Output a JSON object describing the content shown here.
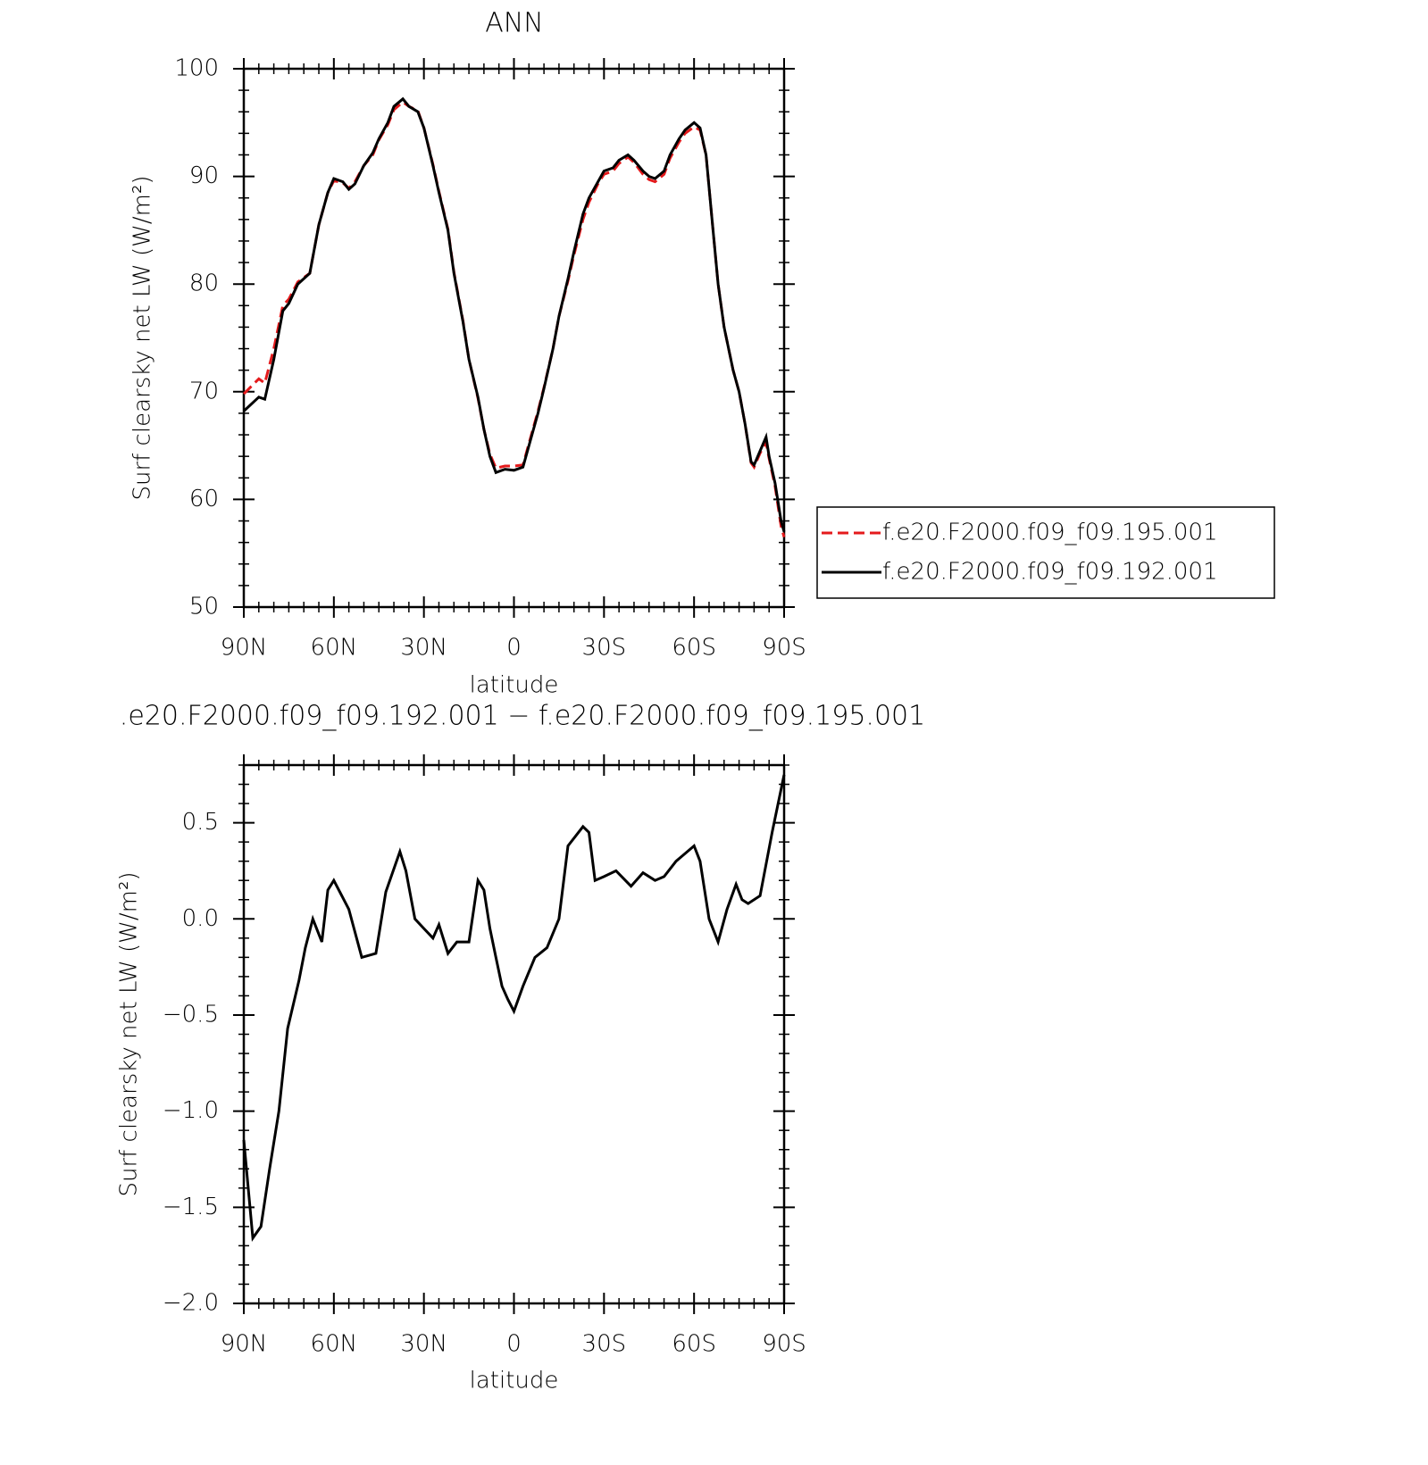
{
  "chart_data": [
    {
      "type": "line",
      "title": "ANN",
      "xlabel": "latitude",
      "ylabel": "Surf clearsky net LW (W/m²)",
      "xlim": [
        90,
        -90
      ],
      "xticks": [
        {
          "value": 90,
          "label": "90N"
        },
        {
          "value": 60,
          "label": "60N"
        },
        {
          "value": 30,
          "label": "30N"
        },
        0,
        {
          "value": -30,
          "label": "30S"
        },
        {
          "value": -60,
          "label": "60S"
        },
        {
          "value": -90,
          "label": "90S"
        }
      ],
      "ylim": [
        50,
        100
      ],
      "yticks": [
        50,
        60,
        70,
        80,
        90,
        100
      ],
      "legend": "right",
      "x": [
        90,
        85,
        83,
        80,
        77,
        75,
        72,
        68,
        65,
        62,
        60,
        57,
        55,
        53,
        50,
        47,
        45,
        42,
        40,
        37,
        35,
        32,
        30,
        27,
        25,
        22,
        20,
        17,
        15,
        12,
        10,
        8,
        6,
        3,
        0,
        -3,
        -5,
        -8,
        -10,
        -13,
        -15,
        -18,
        -20,
        -23,
        -25,
        -28,
        -30,
        -33,
        -35,
        -38,
        -40,
        -43,
        -45,
        -47,
        -50,
        -52,
        -55,
        -57,
        -60,
        -62,
        -64,
        -66,
        -68,
        -70,
        -73,
        -75,
        -77,
        -79,
        -80,
        -82,
        -84,
        -85,
        -87,
        -89,
        -90
      ],
      "series": [
        {
          "name": "f.e20.F2000.f09_f09.195.001",
          "color": "#e41a1c",
          "linestyle": "dashed",
          "values": [
            69.8,
            71.2,
            70.8,
            74,
            78,
            78.6,
            80.2,
            81,
            85.5,
            88.5,
            89.6,
            89.4,
            88.9,
            89.5,
            91,
            92,
            93.4,
            94.8,
            96.2,
            96.9,
            96.5,
            96.1,
            94.5,
            91.1,
            88.6,
            85.1,
            81.1,
            76.6,
            73,
            69.4,
            66.5,
            64.2,
            62.9,
            63.1,
            63.1,
            63.2,
            65.2,
            68.2,
            70.4,
            74,
            77,
            80.3,
            82.7,
            86,
            87.6,
            89.3,
            90.2,
            90.5,
            91.2,
            91.8,
            91.3,
            90.2,
            89.7,
            89.5,
            90.2,
            91.7,
            93.2,
            94,
            94.6,
            94.3,
            92,
            86,
            80,
            76,
            72,
            70,
            67,
            63.4,
            63,
            64.3,
            65.3,
            63.8,
            61.2,
            57.5,
            56.5
          ]
        },
        {
          "name": "f.e20.F2000.f09_f09.192.001",
          "color": "#000000",
          "linestyle": "solid",
          "values": [
            68.2,
            69.5,
            69.3,
            73,
            77.5,
            78.2,
            80,
            81,
            85.5,
            88.5,
            89.8,
            89.5,
            88.8,
            89.3,
            91,
            92.2,
            93.5,
            95,
            96.5,
            97.2,
            96.5,
            96,
            94.5,
            91,
            88.5,
            85,
            81,
            76.5,
            73,
            69.5,
            66.5,
            64,
            62.5,
            62.8,
            62.7,
            63,
            65,
            68,
            70.3,
            74,
            77,
            80.5,
            83,
            86.5,
            88,
            89.5,
            90.5,
            90.8,
            91.5,
            92,
            91.5,
            90.5,
            90,
            89.8,
            90.5,
            92,
            93.5,
            94.3,
            95,
            94.5,
            92,
            86,
            80,
            76,
            72,
            70,
            67,
            63.5,
            63.2,
            64.5,
            65.8,
            64,
            61.5,
            58,
            57
          ]
        }
      ]
    },
    {
      "type": "line",
      "title": ".e20.F2000.f09_f09.192.001 − f.e20.F2000.f09_f09.195.001",
      "xlabel": "latitude",
      "ylabel": "Surf clearsky net LW (W/m²)",
      "xlim": [
        90,
        -90
      ],
      "xticks": [
        {
          "value": 90,
          "label": "90N"
        },
        {
          "value": 60,
          "label": "60N"
        },
        {
          "value": 30,
          "label": "30N"
        },
        0,
        {
          "value": -30,
          "label": "30S"
        },
        {
          "value": -60,
          "label": "60S"
        },
        {
          "value": -90,
          "label": "90S"
        }
      ],
      "ylim": [
        -2,
        0.8
      ],
      "yticks": [
        {
          "value": -2,
          "label": "−2.0"
        },
        {
          "value": -1.5,
          "label": "−1.5"
        },
        {
          "value": -1,
          "label": "−1.0"
        },
        {
          "value": -0.5,
          "label": "−0.5"
        },
        {
          "value": 0,
          "label": "0.0"
        },
        0.5
      ],
      "x": [
        90,
        87,
        84.3,
        81.4,
        78.3,
        75.4,
        71.6,
        69.5,
        67,
        64,
        62,
        60,
        55,
        50.7,
        46,
        42.7,
        38,
        36,
        33,
        30,
        27,
        25,
        22,
        19,
        15,
        12,
        10,
        8,
        6,
        4,
        2,
        0,
        -3,
        -7,
        -11,
        -15,
        -18,
        -23,
        -25,
        -27,
        -30,
        -34,
        -39,
        -43,
        -47,
        -50,
        -54,
        -60,
        -62,
        -65,
        -68,
        -71,
        -74,
        -76,
        -78,
        -82,
        -86,
        -88,
        -90
      ],
      "series": [
        {
          "name": null,
          "color": "#000000",
          "linestyle": "solid",
          "values": [
            -1.15,
            -1.66,
            -1.6,
            -1.3,
            -1.0,
            -0.57,
            -0.32,
            -0.15,
            0.0,
            -0.12,
            0.15,
            0.2,
            0.05,
            -0.2,
            -0.18,
            0.14,
            0.35,
            0.25,
            0.0,
            -0.05,
            -0.1,
            -0.03,
            -0.18,
            -0.12,
            -0.12,
            0.2,
            0.15,
            -0.05,
            -0.2,
            -0.35,
            -0.42,
            -0.48,
            -0.35,
            -0.2,
            -0.15,
            0.0,
            0.38,
            0.48,
            0.45,
            0.2,
            0.22,
            0.25,
            0.17,
            0.24,
            0.2,
            0.22,
            0.3,
            0.38,
            0.3,
            0.0,
            -0.12,
            0.05,
            0.18,
            0.1,
            0.08,
            0.12,
            0.45,
            0.6,
            0.75
          ]
        }
      ]
    }
  ]
}
